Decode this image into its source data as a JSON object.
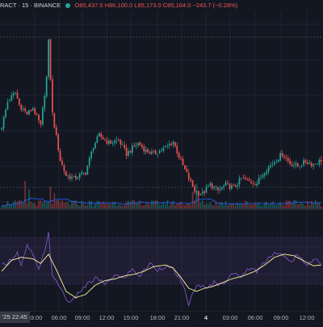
{
  "header": {
    "symbol": "RACT · 15 · BINANCE",
    "ohlc_text": "O85,437.5 H86,100.0 L85,173.0 C85,164.0 −243.7 (−0.28%)"
  },
  "time_axis": {
    "cursor_label": "'25  22:45",
    "labels": [
      "03:00",
      "06:00",
      "09:00",
      "12:00",
      "15:00",
      "18:00",
      "21:00",
      "4",
      "03:00",
      "06:00",
      "09:00",
      "12:00"
    ]
  },
  "colors": {
    "background": "#131722",
    "up": "#26a69a",
    "down": "#ef5350",
    "volume_ma": "#2962ff",
    "oscillator_fast": "#7e57c2",
    "oscillator_slow": "#fff59d",
    "oscillator_band": "#7e57c2"
  },
  "chart_data": {
    "type": "candlestick",
    "candle_count": 165,
    "close_path": [
      [
        0,
        0.44
      ],
      [
        3,
        0.6
      ],
      [
        7,
        0.66
      ],
      [
        9,
        0.58
      ],
      [
        13,
        0.52
      ],
      [
        16,
        0.56
      ],
      [
        20,
        0.44
      ],
      [
        23,
        0.76
      ],
      [
        24,
        0.99
      ],
      [
        26,
        0.52
      ],
      [
        30,
        0.22
      ],
      [
        33,
        0.12
      ],
      [
        37,
        0.1
      ],
      [
        43,
        0.14
      ],
      [
        47,
        0.31
      ],
      [
        50,
        0.38
      ],
      [
        55,
        0.33
      ],
      [
        60,
        0.35
      ],
      [
        64,
        0.26
      ],
      [
        70,
        0.33
      ],
      [
        74,
        0.28
      ],
      [
        78,
        0.26
      ],
      [
        84,
        0.3
      ],
      [
        88,
        0.34
      ],
      [
        92,
        0.21
      ],
      [
        96,
        0.1
      ],
      [
        99,
        0.02
      ],
      [
        103,
        0.0
      ],
      [
        107,
        0.06
      ],
      [
        111,
        0.02
      ],
      [
        115,
        0.06
      ],
      [
        119,
        0.04
      ],
      [
        123,
        0.1
      ],
      [
        127,
        0.08
      ],
      [
        131,
        0.07
      ],
      [
        135,
        0.15
      ],
      [
        140,
        0.21
      ],
      [
        144,
        0.26
      ],
      [
        148,
        0.2
      ],
      [
        152,
        0.18
      ],
      [
        156,
        0.21
      ],
      [
        160,
        0.19
      ],
      [
        164,
        0.22
      ]
    ],
    "volume_spikes": [
      [
        12,
        1.0
      ],
      [
        14,
        0.7
      ],
      [
        25,
        0.8
      ],
      [
        27,
        0.55
      ],
      [
        98,
        0.6
      ],
      [
        100,
        0.9
      ],
      [
        101,
        0.5
      ]
    ],
    "oscillator_path": [
      [
        0,
        0.55
      ],
      [
        4,
        0.62
      ],
      [
        8,
        0.72
      ],
      [
        10,
        0.54
      ],
      [
        13,
        0.8
      ],
      [
        16,
        0.7
      ],
      [
        19,
        0.48
      ],
      [
        22,
        0.75
      ],
      [
        24,
        0.98
      ],
      [
        26,
        0.4
      ],
      [
        30,
        0.28
      ],
      [
        33,
        0.12
      ],
      [
        36,
        0.08
      ],
      [
        40,
        0.22
      ],
      [
        45,
        0.33
      ],
      [
        49,
        0.4
      ],
      [
        53,
        0.3
      ],
      [
        58,
        0.44
      ],
      [
        62,
        0.38
      ],
      [
        67,
        0.5
      ],
      [
        71,
        0.42
      ],
      [
        76,
        0.58
      ],
      [
        80,
        0.5
      ],
      [
        84,
        0.55
      ],
      [
        88,
        0.5
      ],
      [
        91,
        0.4
      ],
      [
        94,
        0.22
      ],
      [
        96,
        0.06
      ],
      [
        98,
        0.18
      ],
      [
        101,
        0.32
      ],
      [
        105,
        0.24
      ],
      [
        109,
        0.34
      ],
      [
        113,
        0.3
      ],
      [
        118,
        0.46
      ],
      [
        122,
        0.4
      ],
      [
        127,
        0.52
      ],
      [
        131,
        0.48
      ],
      [
        136,
        0.64
      ],
      [
        140,
        0.72
      ],
      [
        144,
        0.68
      ],
      [
        148,
        0.6
      ],
      [
        152,
        0.7
      ],
      [
        156,
        0.55
      ],
      [
        160,
        0.64
      ],
      [
        164,
        0.6
      ]
    ],
    "signal_path": [
      [
        0,
        0.48
      ],
      [
        5,
        0.62
      ],
      [
        10,
        0.66
      ],
      [
        16,
        0.64
      ],
      [
        20,
        0.58
      ],
      [
        24,
        0.7
      ],
      [
        28,
        0.5
      ],
      [
        33,
        0.22
      ],
      [
        38,
        0.14
      ],
      [
        43,
        0.18
      ],
      [
        48,
        0.3
      ],
      [
        53,
        0.36
      ],
      [
        58,
        0.38
      ],
      [
        63,
        0.42
      ],
      [
        68,
        0.44
      ],
      [
        73,
        0.48
      ],
      [
        78,
        0.54
      ],
      [
        84,
        0.56
      ],
      [
        88,
        0.52
      ],
      [
        92,
        0.4
      ],
      [
        96,
        0.26
      ],
      [
        100,
        0.22
      ],
      [
        104,
        0.26
      ],
      [
        108,
        0.28
      ],
      [
        113,
        0.33
      ],
      [
        118,
        0.38
      ],
      [
        124,
        0.42
      ],
      [
        130,
        0.48
      ],
      [
        135,
        0.56
      ],
      [
        140,
        0.66
      ],
      [
        145,
        0.7
      ],
      [
        150,
        0.68
      ],
      [
        156,
        0.6
      ],
      [
        160,
        0.55
      ],
      [
        164,
        0.56
      ]
    ]
  }
}
